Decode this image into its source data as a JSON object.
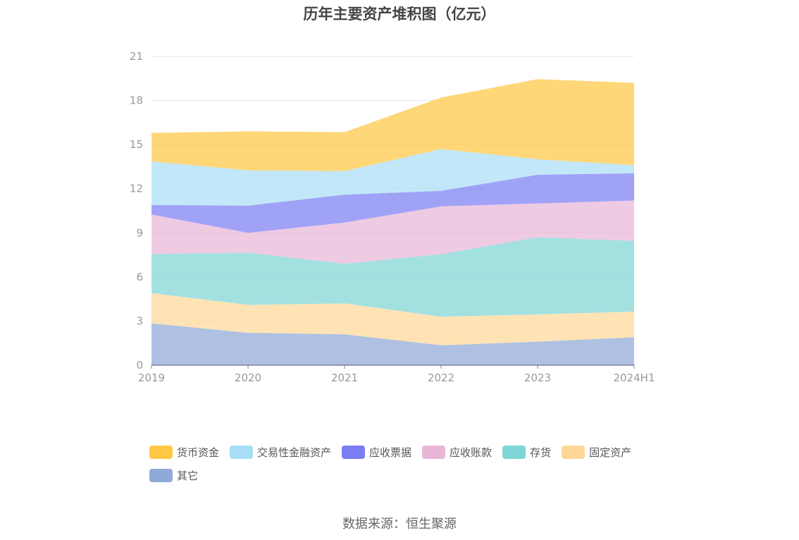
{
  "chart_data": {
    "type": "area",
    "stacked": true,
    "title": "历年主要资产堆积图（亿元）",
    "categories": [
      "2019",
      "2020",
      "2021",
      "2022",
      "2023",
      "2024H1"
    ],
    "ylim": [
      0,
      21
    ],
    "yticks": [
      0,
      3,
      6,
      9,
      12,
      15,
      18,
      21
    ],
    "grid": true,
    "legend_position": "bottom",
    "series": [
      {
        "name": "其它",
        "color": "#8fa9d8",
        "values": [
          2.85,
          2.2,
          2.1,
          1.35,
          1.6,
          1.9
        ]
      },
      {
        "name": "固定资产",
        "color": "#ffd898",
        "values": [
          2.05,
          1.9,
          2.1,
          1.95,
          1.85,
          1.75
        ]
      },
      {
        "name": "存货",
        "color": "#7fd6d6",
        "values": [
          2.65,
          3.55,
          2.7,
          4.25,
          5.25,
          4.8
        ]
      },
      {
        "name": "应收账款",
        "color": "#e9b6d8",
        "values": [
          2.7,
          1.35,
          2.8,
          3.25,
          2.3,
          2.75
        ]
      },
      {
        "name": "应收票据",
        "color": "#7b7ef2",
        "values": [
          0.65,
          1.85,
          1.9,
          1.05,
          1.95,
          1.85
        ]
      },
      {
        "name": "交易性金融资产",
        "color": "#a9def7",
        "values": [
          2.95,
          2.4,
          1.6,
          2.85,
          1.05,
          0.55
        ]
      },
      {
        "name": "货币资金",
        "color": "#ffc845",
        "values": [
          1.95,
          2.65,
          2.65,
          3.5,
          5.45,
          5.6
        ]
      }
    ],
    "legend_order": [
      "货币资金",
      "交易性金融资产",
      "应收票据",
      "应收账款",
      "存货",
      "固定资产",
      "其它"
    ]
  },
  "source": "数据来源：恒生聚源"
}
